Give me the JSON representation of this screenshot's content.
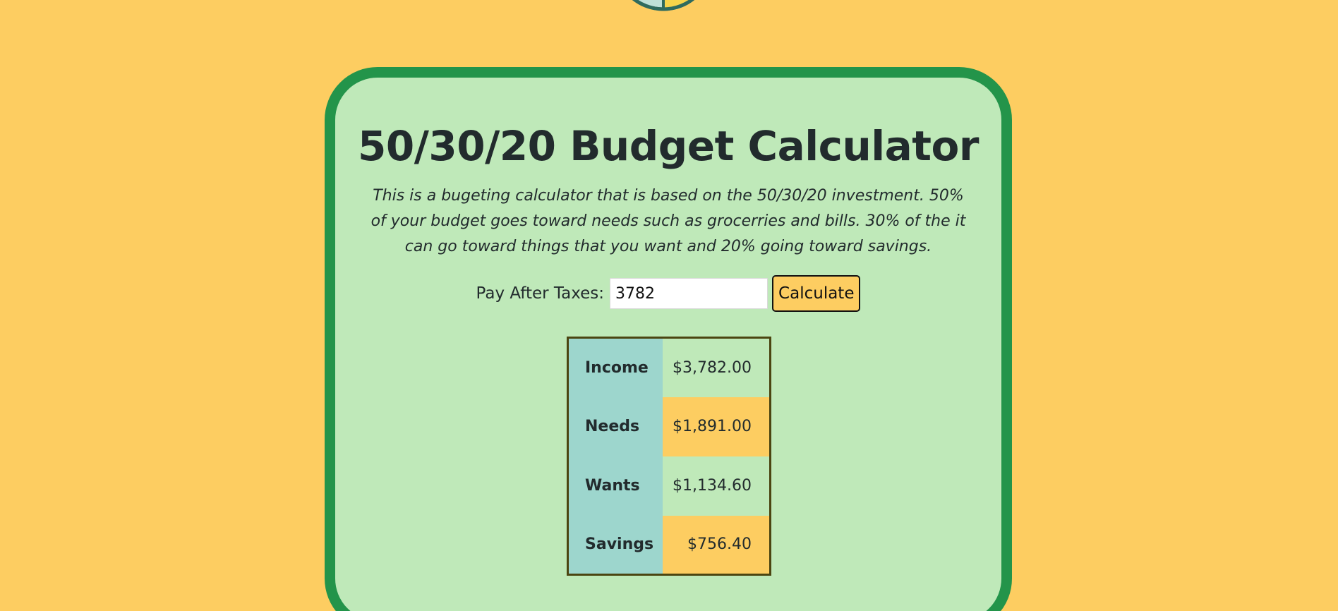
{
  "header": {
    "title": "50/30/20 Budget Calculator",
    "description": "This is a bugeting calculator that is based on the 50/30/20 investment. 50% of your budget goes toward needs such as grocerries and bills. 30% of the it can go toward things that you want and 20% going toward savings."
  },
  "form": {
    "label": "Pay After Taxes:",
    "value": "3782",
    "button_label": "Calculate"
  },
  "results": [
    {
      "label": "Income",
      "value": "$3,782.00"
    },
    {
      "label": "Needs",
      "value": "$1,891.00"
    },
    {
      "label": "Wants",
      "value": "$1,134.60"
    },
    {
      "label": "Savings",
      "value": "$756.40"
    }
  ],
  "colors": {
    "background": "#fdcd61",
    "card": "#bfe9b9",
    "card_border": "#23944a",
    "label_cell": "#9dd6cd",
    "accent": "#fdcd61"
  }
}
